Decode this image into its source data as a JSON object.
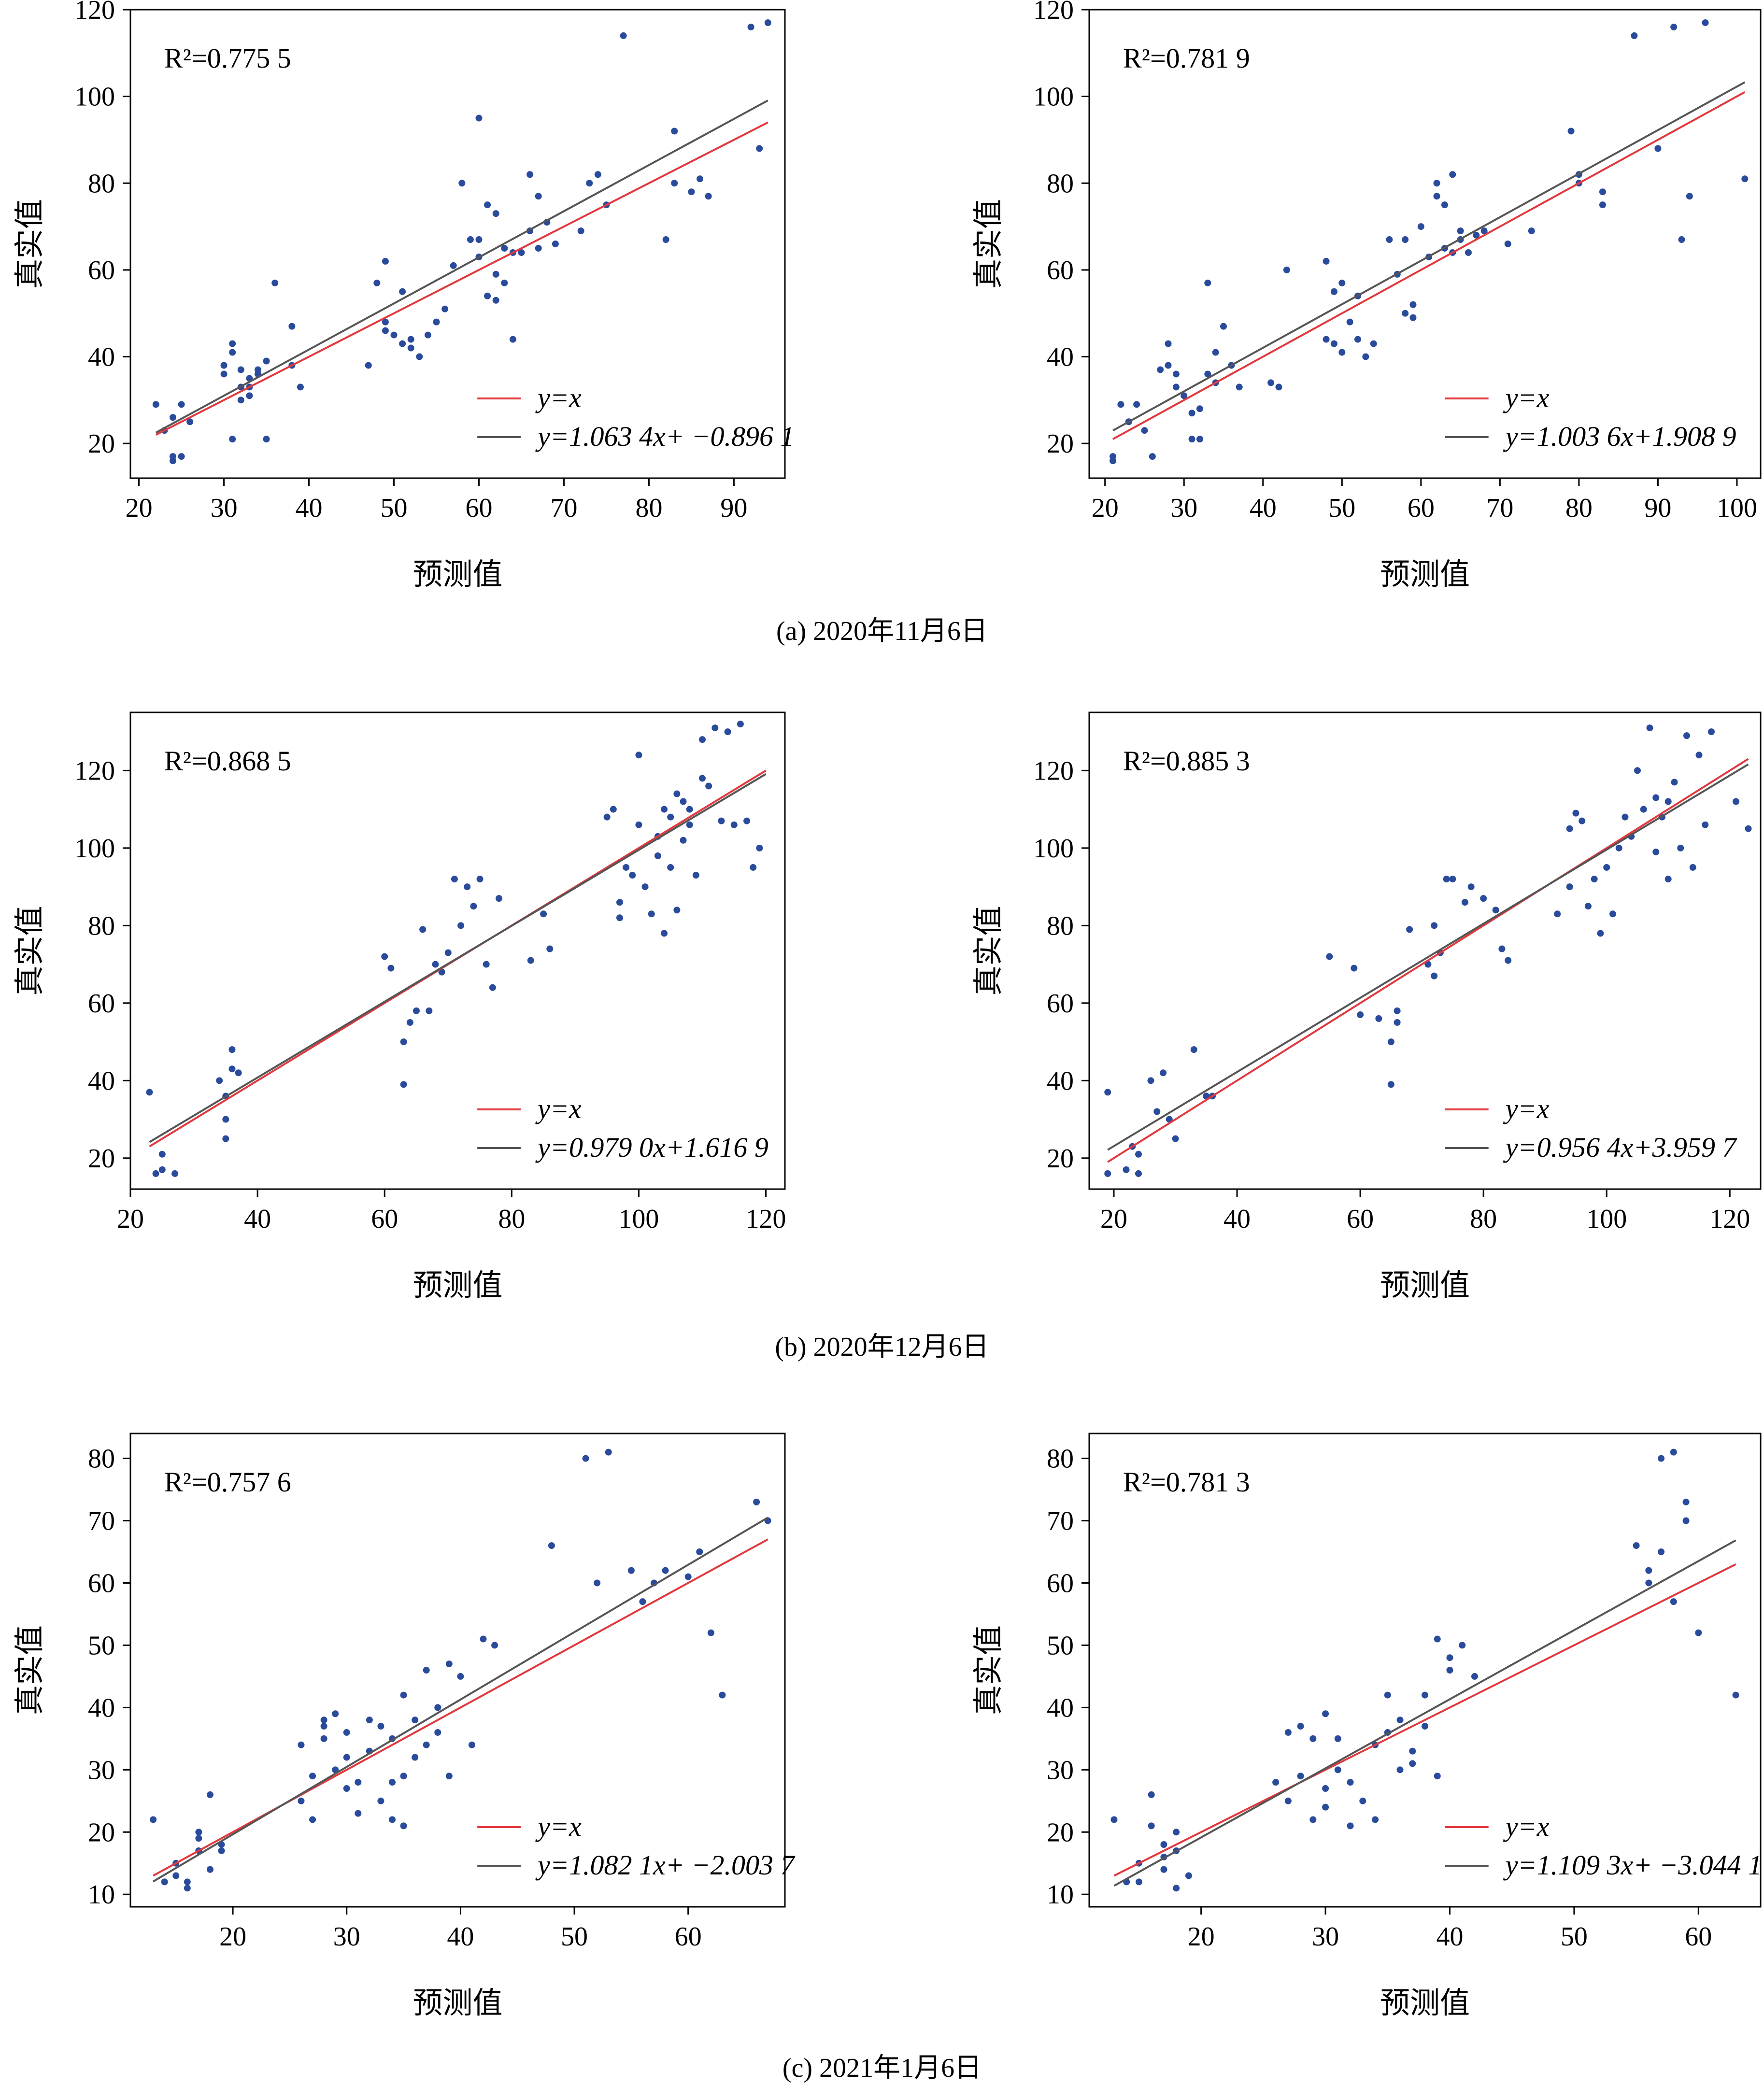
{
  "colors": {
    "point": "#2a4b9b",
    "identity": "#e0393e",
    "fit": "#555555"
  },
  "captions": [
    "(a) 2020年11月6日",
    "(b) 2020年12月6日",
    "(c) 2021年1月6日"
  ],
  "chart_data": [
    {
      "type": "scatter",
      "r2_label": "R²=0.775 5",
      "xlabel": "预测值",
      "ylabel": "真实值",
      "xlim": [
        19,
        96
      ],
      "ylim": [
        12,
        120
      ],
      "xticks": [
        20,
        30,
        40,
        50,
        60,
        70,
        80,
        90
      ],
      "yticks": [
        20,
        40,
        60,
        80,
        100,
        120
      ],
      "legend": [
        "y=x",
        "y=1.063 4x+ −0.896 1"
      ],
      "fit": {
        "slope": 1.0634,
        "intercept": -0.8961,
        "x_range": [
          22,
          94
        ]
      },
      "identity_range": [
        22,
        94
      ],
      "x": [
        22,
        23,
        24,
        24,
        24,
        25,
        25,
        26,
        30,
        30,
        31,
        31,
        31,
        32,
        32,
        32,
        33,
        33,
        33,
        34,
        34,
        35,
        35,
        36,
        38,
        38,
        39,
        47,
        48,
        49,
        49,
        49,
        50,
        51,
        51,
        52,
        52,
        53,
        54,
        55,
        56,
        57,
        58,
        59,
        60,
        60,
        60,
        61,
        61,
        62,
        62,
        62,
        63,
        63,
        64,
        64,
        65,
        66,
        66,
        67,
        67,
        68,
        69,
        72,
        73,
        74,
        75,
        77,
        82,
        83,
        83,
        85,
        86,
        87,
        92,
        93,
        94
      ],
      "y": [
        29,
        23,
        26,
        17,
        16,
        17,
        29,
        25,
        36,
        38,
        21,
        43,
        41,
        37,
        30,
        33,
        35,
        31,
        33,
        36,
        37,
        39,
        21,
        57,
        47,
        38,
        33,
        38,
        57,
        48,
        46,
        62,
        45,
        55,
        43,
        42,
        44,
        40,
        45,
        48,
        51,
        61,
        80,
        67,
        67,
        63,
        95,
        75,
        54,
        73,
        53,
        59,
        57,
        65,
        44,
        64,
        64,
        69,
        82,
        65,
        77,
        71,
        66,
        69,
        80,
        82,
        75,
        114,
        67,
        92,
        80,
        78,
        81,
        77,
        116,
        88,
        117
      ]
    },
    {
      "type": "scatter",
      "r2_label": "R²=0.781 9",
      "xlabel": "预测值",
      "ylabel": "真实值",
      "xlim": [
        18,
        103
      ],
      "ylim": [
        12,
        120
      ],
      "xticks": [
        20,
        30,
        40,
        50,
        60,
        70,
        80,
        90,
        100
      ],
      "yticks": [
        20,
        40,
        60,
        80,
        100,
        120
      ],
      "legend": [
        "y=x",
        "y=1.003 6x+1.908 9"
      ],
      "fit": {
        "slope": 1.0036,
        "intercept": 1.9089,
        "x_range": [
          21,
          101
        ]
      },
      "identity_range": [
        21,
        101
      ],
      "x": [
        21,
        21,
        22,
        23,
        24,
        25,
        26,
        27,
        28,
        28,
        29,
        29,
        30,
        31,
        31,
        32,
        32,
        33,
        33,
        34,
        34,
        35,
        36,
        37,
        41,
        42,
        43,
        48,
        48,
        49,
        49,
        50,
        50,
        51,
        52,
        52,
        53,
        54,
        56,
        57,
        58,
        58,
        59,
        59,
        60,
        61,
        62,
        62,
        63,
        63,
        64,
        64,
        65,
        65,
        66,
        67,
        68,
        71,
        74,
        79,
        80,
        80,
        83,
        83,
        87,
        90,
        92,
        93,
        94,
        96,
        101
      ],
      "y": [
        17,
        16,
        29,
        25,
        29,
        23,
        17,
        37,
        43,
        38,
        36,
        33,
        31,
        27,
        21,
        28,
        21,
        36,
        57,
        41,
        34,
        47,
        38,
        33,
        34,
        33,
        60,
        44,
        62,
        55,
        43,
        57,
        41,
        48,
        44,
        54,
        40,
        43,
        67,
        59,
        50,
        67,
        49,
        52,
        70,
        63,
        77,
        80,
        75,
        65,
        64,
        82,
        69,
        67,
        64,
        68,
        69,
        66,
        69,
        92,
        80,
        82,
        78,
        75,
        114,
        88,
        116,
        67,
        77,
        117,
        81
      ]
    },
    {
      "type": "scatter",
      "r2_label": "R²=0.868 5",
      "xlabel": "预测值",
      "ylabel": "真实值",
      "xlim": [
        20,
        123
      ],
      "ylim": [
        12,
        135
      ],
      "xticks": [
        20,
        40,
        60,
        80,
        100,
        120
      ],
      "yticks": [
        20,
        40,
        60,
        80,
        100,
        120
      ],
      "legend": [
        "y=x",
        "y=0.979 0x+1.616 9"
      ],
      "fit": {
        "slope": 0.979,
        "intercept": 1.6169,
        "x_range": [
          23,
          120
        ]
      },
      "identity_range": [
        23,
        120
      ],
      "x": [
        23,
        24,
        25,
        25,
        27,
        34,
        35,
        35,
        35,
        36,
        36,
        37,
        60,
        61,
        63,
        63,
        64,
        65,
        66,
        67,
        68,
        69,
        70,
        71,
        72,
        73,
        74,
        75,
        76,
        77,
        78,
        83,
        85,
        86,
        95,
        96,
        97,
        97,
        98,
        99,
        100,
        100,
        101,
        102,
        103,
        103,
        104,
        104,
        105,
        105,
        106,
        106,
        107,
        107,
        108,
        108,
        109,
        110,
        110,
        111,
        112,
        113,
        114,
        115,
        116,
        117,
        118,
        119
      ],
      "y": [
        37,
        16,
        21,
        17,
        16,
        40,
        36,
        30,
        25,
        48,
        43,
        42,
        72,
        69,
        50,
        39,
        55,
        58,
        79,
        58,
        70,
        68,
        73,
        92,
        80,
        90,
        85,
        92,
        70,
        64,
        87,
        71,
        83,
        74,
        108,
        110,
        86,
        82,
        95,
        93,
        124,
        106,
        90,
        83,
        103,
        98,
        110,
        78,
        108,
        95,
        114,
        84,
        112,
        102,
        106,
        110,
        93,
        128,
        118,
        116,
        131,
        107,
        130,
        106,
        132,
        107,
        95,
        100
      ]
    },
    {
      "type": "scatter",
      "r2_label": "R²=0.885 3",
      "xlabel": "预测值",
      "ylabel": "真实值",
      "xlim": [
        16,
        125
      ],
      "ylim": [
        12,
        135
      ],
      "xticks": [
        20,
        40,
        60,
        80,
        100,
        120
      ],
      "yticks": [
        20,
        40,
        60,
        80,
        100,
        120
      ],
      "legend": [
        "y=x",
        "y=0.956 4x+3.959 7"
      ],
      "fit": {
        "slope": 0.9564,
        "intercept": 3.9597,
        "x_range": [
          19,
          123
        ]
      },
      "identity_range": [
        19,
        123
      ],
      "x": [
        19,
        19,
        22,
        23,
        24,
        24,
        26,
        27,
        28,
        29,
        30,
        33,
        35,
        36,
        55,
        59,
        60,
        63,
        65,
        65,
        66,
        66,
        68,
        71,
        72,
        72,
        73,
        74,
        75,
        77,
        78,
        80,
        82,
        83,
        84,
        92,
        94,
        94,
        95,
        96,
        97,
        98,
        99,
        100,
        101,
        102,
        103,
        104,
        105,
        106,
        107,
        108,
        108,
        109,
        110,
        110,
        111,
        112,
        113,
        114,
        115,
        116,
        117,
        121,
        123
      ],
      "y": [
        37,
        16,
        17,
        23,
        16,
        21,
        40,
        32,
        42,
        30,
        25,
        48,
        36,
        36,
        72,
        69,
        57,
        56,
        50,
        39,
        55,
        58,
        79,
        70,
        67,
        80,
        73,
        92,
        92,
        86,
        90,
        87,
        84,
        74,
        71,
        83,
        105,
        90,
        109,
        107,
        85,
        92,
        78,
        95,
        83,
        100,
        108,
        103,
        120,
        110,
        131,
        99,
        113,
        108,
        92,
        112,
        117,
        100,
        129,
        95,
        124,
        106,
        130,
        112,
        105
      ]
    },
    {
      "type": "scatter",
      "r2_label": "R²=0.757 6",
      "xlabel": "预测值",
      "ylabel": "真实值",
      "xlim": [
        11,
        68.5
      ],
      "ylim": [
        8,
        84
      ],
      "xticks": [
        20,
        30,
        40,
        50,
        60
      ],
      "yticks": [
        10,
        20,
        30,
        40,
        50,
        60,
        70,
        80
      ],
      "legend": [
        "y=x",
        "y=1.082 1x+ −2.003 7"
      ],
      "fit": {
        "slope": 1.0821,
        "intercept": -2.0037,
        "x_range": [
          13,
          67
        ]
      },
      "identity_range": [
        13,
        67
      ],
      "x": [
        13,
        14,
        15,
        15,
        16,
        16,
        17,
        17,
        17,
        18,
        18,
        19,
        19,
        26,
        26,
        27,
        27,
        28,
        28,
        28,
        29,
        29,
        30,
        30,
        30,
        31,
        31,
        32,
        32,
        33,
        33,
        34,
        34,
        34,
        35,
        35,
        35,
        36,
        36,
        37,
        37,
        38,
        38,
        39,
        39,
        40,
        41,
        42,
        43,
        48,
        51,
        52,
        53,
        55,
        56,
        57,
        58,
        60,
        61,
        62,
        63,
        66,
        67
      ],
      "y": [
        22,
        12,
        15,
        13,
        11,
        12,
        20,
        19,
        17,
        26,
        14,
        17,
        18,
        34,
        25,
        29,
        22,
        37,
        35,
        38,
        39,
        30,
        32,
        36,
        27,
        23,
        28,
        38,
        33,
        25,
        37,
        28,
        22,
        35,
        21,
        29,
        42,
        38,
        32,
        46,
        34,
        36,
        40,
        47,
        29,
        45,
        34,
        51,
        50,
        66,
        80,
        60,
        81,
        62,
        57,
        60,
        62,
        61,
        65,
        52,
        42,
        73,
        70
      ]
    },
    {
      "type": "scatter",
      "r2_label": "R²=0.781 3",
      "xlabel": "预测值",
      "ylabel": "真实值",
      "xlim": [
        11,
        65
      ],
      "ylim": [
        8,
        84
      ],
      "xticks": [
        20,
        30,
        40,
        50,
        60
      ],
      "yticks": [
        10,
        20,
        30,
        40,
        50,
        60,
        70,
        80
      ],
      "legend": [
        "y=x",
        "y=1.109 3x+ −3.044 1"
      ],
      "fit": {
        "slope": 1.1093,
        "intercept": -3.0441,
        "x_range": [
          13,
          63
        ]
      },
      "identity_range": [
        13,
        63
      ],
      "x": [
        13,
        14,
        15,
        15,
        16,
        16,
        17,
        17,
        17,
        18,
        18,
        18,
        19,
        26,
        27,
        27,
        28,
        28,
        29,
        29,
        30,
        30,
        30,
        31,
        31,
        32,
        32,
        33,
        34,
        34,
        35,
        35,
        36,
        36,
        37,
        37,
        38,
        38,
        39,
        39,
        40,
        40,
        41,
        42,
        55,
        56,
        56,
        57,
        57,
        58,
        58,
        59,
        59,
        60,
        63
      ],
      "y": [
        22,
        12,
        15,
        12,
        26,
        21,
        16,
        18,
        14,
        20,
        11,
        17,
        13,
        28,
        25,
        36,
        29,
        37,
        35,
        22,
        39,
        27,
        24,
        35,
        30,
        21,
        28,
        25,
        34,
        22,
        36,
        42,
        38,
        30,
        33,
        31,
        37,
        42,
        51,
        29,
        46,
        48,
        50,
        45,
        66,
        62,
        60,
        80,
        65,
        57,
        81,
        73,
        70,
        52,
        42
      ]
    }
  ]
}
